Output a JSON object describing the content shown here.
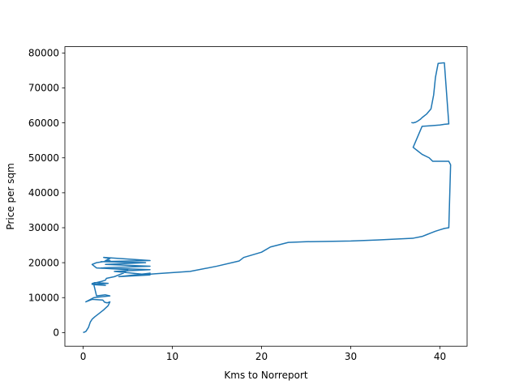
{
  "chart_data": {
    "type": "line",
    "title": "",
    "xlabel": "Kms to Norreport",
    "ylabel": "Price per sqm",
    "xlim": [
      -2.05,
      43.05
    ],
    "ylim": [
      -3900,
      81800
    ],
    "x_ticks": [
      0,
      10,
      20,
      30,
      40
    ],
    "y_ticks": [
      0,
      10000,
      20000,
      30000,
      40000,
      50000,
      60000,
      70000,
      80000
    ],
    "x_tick_labels": [
      "0",
      "10",
      "20",
      "30",
      "40"
    ],
    "y_tick_labels": [
      "0",
      "10000",
      "20000",
      "30000",
      "40000",
      "50000",
      "60000",
      "70000",
      "80000"
    ],
    "grid": false,
    "color": "#1f77b4",
    "series": [
      {
        "x": [
          0.0,
          0.3,
          0.6,
          0.8,
          1.0,
          1.3,
          1.8,
          2.3,
          2.8,
          3.0,
          2.7,
          2.4,
          2.2,
          1.0,
          0.3,
          1.2,
          3.0,
          2.5,
          1.5,
          1.2,
          2.5,
          1.0,
          2.0,
          2.8,
          1.3,
          1.0,
          2.0,
          2.5,
          2.6,
          3.5,
          4.5,
          5.0,
          1.5,
          1.0,
          1.5,
          3.0,
          2.5,
          3.0,
          2.3,
          7.5,
          2.0,
          7.0,
          2.5,
          7.5,
          2.0,
          7.5,
          3.5,
          7.5,
          4.0,
          7.5,
          5.0,
          8.0,
          12.0,
          15.0,
          17.5,
          18.0,
          20.0,
          21.0,
          23.0,
          25.0,
          30.0,
          33.0,
          37.0,
          38.0,
          38.5,
          39.0,
          39.5,
          40.0,
          40.5,
          41.0,
          41.2,
          41.0,
          39.2,
          38.8,
          38.0,
          37.5,
          37.0,
          38.0,
          39.0,
          40.0,
          40.5,
          41.0,
          40.5,
          39.8,
          39.5,
          39.3,
          39.0,
          38.5,
          38.0,
          37.8,
          37.5,
          37.3,
          37.0,
          36.8
        ],
        "y": [
          0,
          300,
          1500,
          3000,
          3800,
          4500,
          5500,
          6500,
          7700,
          8800,
          8500,
          8700,
          9300,
          9500,
          8800,
          10000,
          10500,
          10800,
          10500,
          13700,
          13500,
          13800,
          13900,
          14100,
          14300,
          14000,
          14600,
          15000,
          15500,
          16000,
          17000,
          18000,
          18500,
          19500,
          20000,
          20600,
          20600,
          21200,
          21500,
          20600,
          20300,
          20000,
          19500,
          19000,
          18500,
          18000,
          17500,
          16500,
          16000,
          17000,
          16200,
          16800,
          17500,
          19000,
          20500,
          21500,
          23000,
          24500,
          25800,
          26000,
          26200,
          26500,
          27000,
          27500,
          28000,
          28500,
          29000,
          29400,
          29800,
          30000,
          48000,
          49000,
          49000,
          50000,
          51000,
          52000,
          53000,
          59000,
          59200,
          59400,
          59600,
          59700,
          77200,
          77000,
          73000,
          68000,
          64000,
          62500,
          61500,
          61000,
          60500,
          60200,
          60000,
          60100
        ]
      }
    ]
  }
}
